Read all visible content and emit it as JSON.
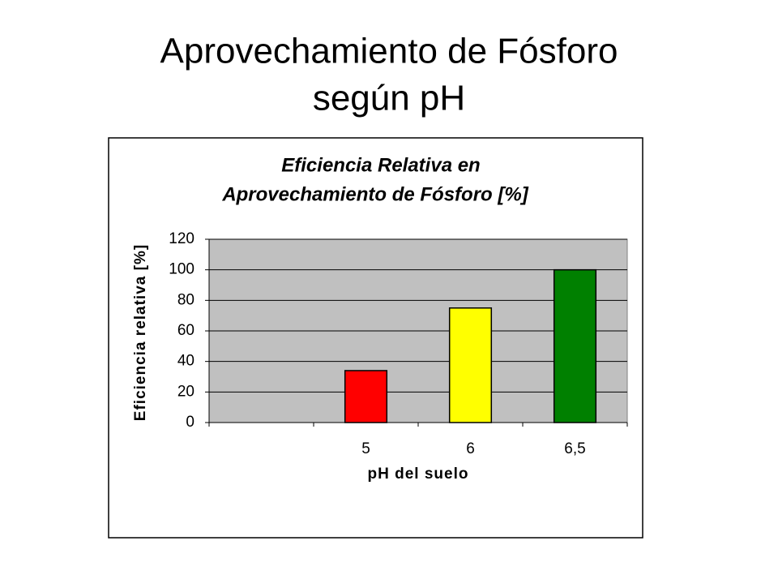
{
  "slide_title": [
    "Aprovechamiento de Fósforo",
    "según pH"
  ],
  "chart_data": {
    "type": "bar",
    "title": [
      "Eficiencia Relativa en",
      "Aprovechamiento de Fósforo [%]"
    ],
    "x_label": "pH del suelo",
    "y_label": "Eficiencia relativa [%]",
    "categories": [
      null,
      "5",
      "6",
      "6,5"
    ],
    "values": [
      null,
      34,
      75,
      100
    ],
    "colors": [
      null,
      "#ff0000",
      "#ffff00",
      "#008000"
    ],
    "ylim": [
      0,
      120
    ],
    "yticks": [
      0,
      20,
      40,
      60,
      80,
      100,
      120
    ],
    "grid": true
  }
}
